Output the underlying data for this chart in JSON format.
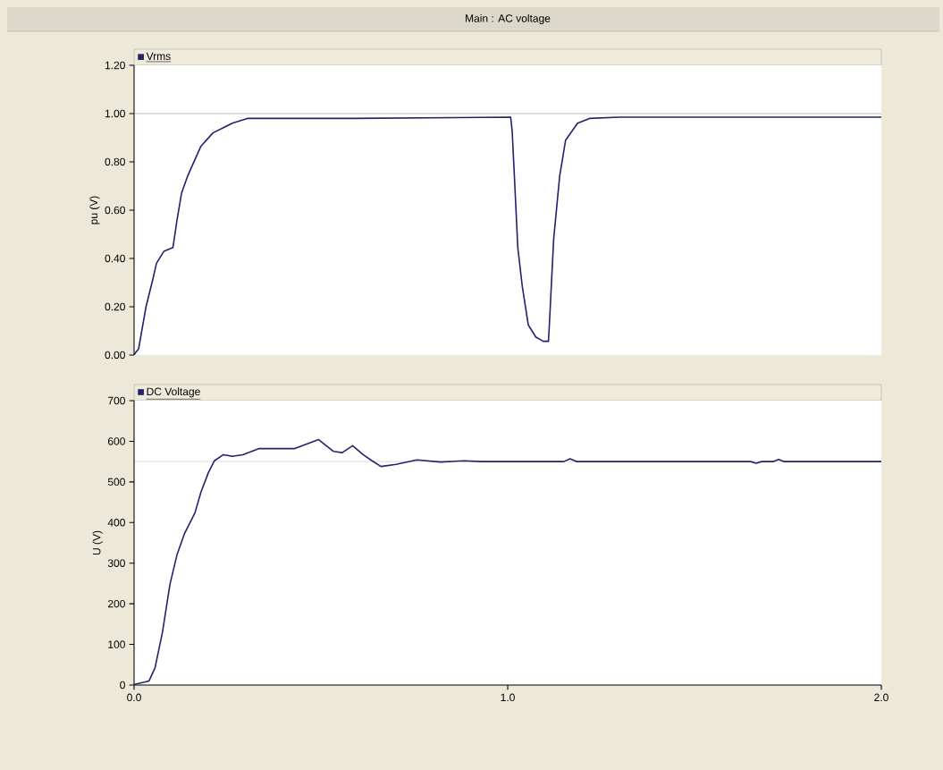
{
  "chart_data": [
    {
      "type": "line",
      "title": "Main : AC voltage",
      "ylabel": "pu (V)",
      "xlim": [
        0,
        2
      ],
      "ylim": [
        0,
        1.2
      ],
      "yticks": [
        {
          "value": 0,
          "label": "0.00"
        },
        {
          "value": 0.2,
          "label": "0.20"
        },
        {
          "value": 0.4,
          "label": "0.40"
        },
        {
          "value": 0.6,
          "label": "0.60"
        },
        {
          "value": 0.8,
          "label": "0.80"
        },
        {
          "value": 1,
          "label": "1.00"
        },
        {
          "value": 1.2,
          "label": "1.20"
        }
      ],
      "tick_labels": "y",
      "legend": "top left",
      "ref_lines": [
        {
          "axis": "y",
          "value": 1,
          "color": "#808080"
        }
      ],
      "series": [
        {
          "name": "Vrms",
          "color": "#22226e",
          "x": [
            0,
            0.004,
            0.012,
            0.032,
            0.048,
            0.06,
            0.08,
            0.104,
            0.115,
            0.127,
            0.143,
            0.179,
            0.211,
            0.263,
            0.303,
            0.59,
            1.008,
            1.012,
            1.019,
            1.027,
            1.039,
            1.055,
            1.075,
            1.095,
            1.109,
            1.111,
            1.123,
            1.139,
            1.155,
            1.187,
            1.219,
            1.3,
            2.0
          ],
          "values": [
            0,
            0.01,
            0.025,
            0.2,
            0.3,
            0.38,
            0.43,
            0.445,
            0.56,
            0.67,
            0.74,
            0.865,
            0.92,
            0.96,
            0.98,
            0.98,
            0.985,
            0.927,
            0.705,
            0.445,
            0.285,
            0.125,
            0.075,
            0.057,
            0.057,
            0.11,
            0.48,
            0.74,
            0.89,
            0.96,
            0.98,
            0.985,
            0.985
          ]
        }
      ]
    },
    {
      "type": "line",
      "ylabel": "U (V)",
      "xlim": [
        0,
        2
      ],
      "ylim": [
        0,
        700
      ],
      "xticks": [
        {
          "value": 0,
          "label": "0.0"
        },
        {
          "value": 1,
          "label": "1.0"
        },
        {
          "value": 2,
          "label": "2.0"
        }
      ],
      "yticks": [
        0,
        100,
        200,
        300,
        400,
        500,
        600,
        700
      ],
      "legend": "top left",
      "ref_lines": [
        {
          "axis": "y",
          "value": 550,
          "color": "#808080"
        }
      ],
      "series": [
        {
          "name": "DC Voltage",
          "color": "#22226e",
          "x": [
            0,
            0.004,
            0.04,
            0.056,
            0.076,
            0.096,
            0.115,
            0.135,
            0.163,
            0.179,
            0.199,
            0.215,
            0.239,
            0.263,
            0.291,
            0.335,
            0.43,
            0.494,
            0.534,
            0.557,
            0.585,
            0.613,
            0.637,
            0.661,
            0.701,
            0.757,
            0.82,
            0.884,
            0.93,
            1.15,
            1.167,
            1.185,
            1.65,
            1.665,
            1.68,
            1.71,
            1.725,
            1.74,
            2.0
          ],
          "values": [
            2,
            2,
            10,
            42,
            130,
            248,
            321,
            373,
            424,
            475,
            523,
            552,
            567,
            563,
            567,
            582,
            582,
            604,
            575,
            572,
            589,
            567,
            552,
            538,
            543,
            554,
            549,
            552,
            550,
            550,
            557,
            550,
            550,
            546,
            550,
            550,
            555,
            550,
            550
          ]
        }
      ]
    }
  ]
}
